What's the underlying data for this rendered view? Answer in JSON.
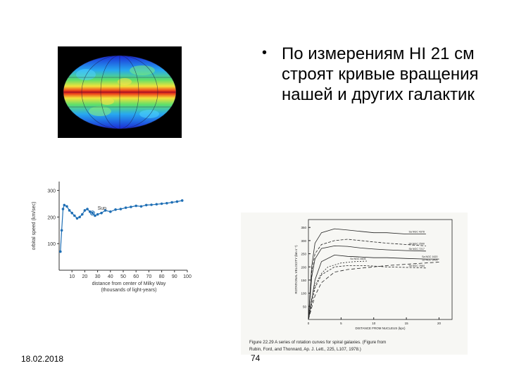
{
  "bullet": {
    "symbol": "•",
    "text": "По измерениям HI 21 см строят кривые вращения нашей и других галактик"
  },
  "milky_way_plot": {
    "sun_label": "Sun",
    "ylabel": "orbital speed (km/sec)",
    "xlabel_line1": "distance from center of Milky Way",
    "xlabel_line2": "(thousands of light-years)",
    "yticks": [
      "100",
      "200",
      "300"
    ],
    "xticks": [
      "10",
      "20",
      "30",
      "40",
      "50",
      "60",
      "70",
      "80",
      "90",
      "100"
    ]
  },
  "spiral_figure": {
    "caption_line1": "Figure 22.29  A series of rotation curves for spiral galaxies. (Figure from",
    "caption_line2": "Rubin, Ford, and Thonnard, Ap. J. Lett., 225, L107, 1978.)",
    "ylabel": "ROTATIONAL VELOCITY (km s⁻¹)",
    "xlabel": "DISTANCE FROM NUCLEUS (kpc)",
    "yticks": [
      "50",
      "100",
      "150",
      "200",
      "250",
      "300",
      "350"
    ],
    "xticks": [
      "0",
      "5",
      "10",
      "15",
      "20"
    ],
    "curve_labels": [
      "Sa NGC 4378",
      "Sb NGC 2590",
      "Sb NGC 7217",
      "Sc NGC 4605",
      "Sc NGC 3495",
      "Sa NGC 1620",
      "Sb NGC 7664"
    ]
  },
  "footer": {
    "date": "18.02.2018",
    "page": "74"
  },
  "chart_data": [
    {
      "type": "scatter",
      "title": "",
      "xlabel": "distance from center of Milky Way (thousands of light-years)",
      "ylabel": "orbital speed (km/sec)",
      "xlim": [
        0,
        100
      ],
      "ylim": [
        0,
        300
      ],
      "annotations": [
        "Sun"
      ],
      "series": [
        {
          "values_x": [
            1,
            2,
            3,
            4,
            6,
            8,
            10,
            12,
            14,
            16,
            18,
            20,
            22,
            24,
            26,
            28,
            30,
            33,
            36,
            40,
            44,
            48,
            52,
            56,
            60,
            64,
            68,
            72,
            76,
            80,
            84,
            88,
            92,
            96
          ],
          "values_y": [
            70,
            150,
            230,
            245,
            240,
            225,
            215,
            205,
            195,
            200,
            210,
            225,
            230,
            220,
            215,
            205,
            210,
            215,
            225,
            220,
            228,
            230,
            235,
            238,
            242,
            240,
            245,
            246,
            248,
            250,
            252,
            255,
            258,
            262
          ]
        }
      ]
    },
    {
      "type": "line",
      "title": "Figure 22.29 A series of rotation curves for spiral galaxies.",
      "xlabel": "DISTANCE FROM NUCLEUS (kpc)",
      "ylabel": "ROTATIONAL VELOCITY (km s⁻¹)",
      "xlim": [
        0,
        22
      ],
      "ylim": [
        0,
        380
      ],
      "series": [
        {
          "name": "Sa NGC 4378",
          "x": [
            0,
            0.5,
            1,
            2,
            4,
            6,
            8,
            10,
            12,
            15,
            18
          ],
          "y": [
            0,
            200,
            290,
            330,
            345,
            340,
            335,
            330,
            330,
            325,
            325
          ]
        },
        {
          "name": "Sb NGC 2590",
          "x": [
            0,
            0.5,
            1,
            2,
            4,
            6,
            8,
            10,
            12,
            15,
            18
          ],
          "y": [
            0,
            180,
            250,
            285,
            300,
            305,
            300,
            295,
            290,
            285,
            280
          ]
        },
        {
          "name": "Sb NGC 7217",
          "x": [
            0,
            0.5,
            1,
            2,
            4,
            6,
            8,
            10,
            12,
            15,
            18
          ],
          "y": [
            0,
            160,
            230,
            270,
            280,
            278,
            272,
            268,
            265,
            262,
            260
          ]
        },
        {
          "name": "Sc NGC 4605",
          "x": [
            0,
            0.5,
            1,
            2,
            3,
            5,
            7,
            9
          ],
          "y": [
            0,
            80,
            130,
            175,
            200,
            215,
            220,
            222
          ]
        },
        {
          "name": "Sc NGC 3495",
          "x": [
            0,
            1,
            2,
            4,
            6,
            8,
            10,
            12,
            15,
            18,
            20
          ],
          "y": [
            0,
            90,
            140,
            180,
            190,
            195,
            200,
            205,
            210,
            215,
            218
          ]
        },
        {
          "name": "Sa NGC 1620",
          "x": [
            0,
            1,
            2,
            4,
            6,
            8,
            10,
            12,
            15,
            18,
            20
          ],
          "y": [
            0,
            150,
            220,
            245,
            240,
            238,
            235,
            235,
            232,
            230,
            230
          ]
        },
        {
          "name": "Sb NGC 7664",
          "x": [
            0,
            1,
            2,
            4,
            6,
            8,
            10,
            12,
            15,
            18
          ],
          "y": [
            0,
            120,
            170,
            200,
            205,
            205,
            203,
            200,
            198,
            196
          ]
        }
      ]
    }
  ]
}
